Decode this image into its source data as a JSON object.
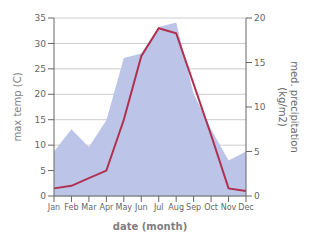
{
  "chart_data": {
    "type": "line",
    "categories": [
      "Jan",
      "Feb",
      "Mar",
      "Apr",
      "May",
      "Jun",
      "Jul",
      "Aug",
      "Sep",
      "Oct",
      "Nov",
      "Dec"
    ],
    "series": [
      {
        "type": "area",
        "axis": "y2",
        "color": "#bcc5e8",
        "values": [
          5.0,
          7.5,
          5.5,
          8.5,
          15.5,
          16.0,
          19.0,
          19.5,
          11.5,
          7.5,
          4.0,
          5.0
        ]
      },
      {
        "type": "line",
        "color": "#b03050",
        "values": [
          1.5,
          2.0,
          3.5,
          5.0,
          15.0,
          27.5,
          33.0,
          32.0,
          22.0,
          12.0,
          1.5,
          1.0
        ]
      }
    ],
    "xlabel": "date (month)",
    "ylabel": "max temp (C)",
    "y2label": "med. precipitation\n(kg/m2)",
    "ylim": [
      0,
      35
    ],
    "yticks": [
      0,
      5,
      10,
      15,
      20,
      25,
      30,
      35
    ],
    "y2lim": [
      0,
      20
    ],
    "y2ticks": [
      0,
      5,
      10,
      15,
      20
    ],
    "grid": true
  }
}
